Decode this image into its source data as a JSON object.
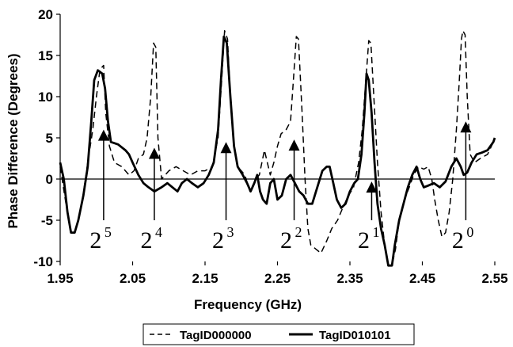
{
  "chart_data": {
    "type": "line",
    "xlabel": "Frequency (GHz)",
    "ylabel": "Phase Difference (Degrees)",
    "xlim": [
      1.95,
      2.55
    ],
    "ylim": [
      -10,
      20
    ],
    "xticks": [
      "1.95",
      "2.05",
      "2.15",
      "2.25",
      "2.35",
      "2.45",
      "2.55"
    ],
    "yticks": [
      "-10",
      "-5",
      "0",
      "5",
      "10",
      "15",
      "20"
    ],
    "grid": false,
    "legend_position": "bottom",
    "series": [
      {
        "name": "TagID000000",
        "style": "dashed",
        "points": [
          [
            1.95,
            1.5
          ],
          [
            1.958,
            -3
          ],
          [
            1.965,
            -6.5
          ],
          [
            1.972,
            -6
          ],
          [
            1.98,
            -3
          ],
          [
            1.988,
            2
          ],
          [
            1.995,
            6
          ],
          [
            2.0,
            10
          ],
          [
            2.005,
            13.3
          ],
          [
            2.01,
            13.8
          ],
          [
            2.013,
            8
          ],
          [
            2.018,
            4
          ],
          [
            2.025,
            2
          ],
          [
            2.035,
            1.5
          ],
          [
            2.045,
            0.5
          ],
          [
            2.052,
            1
          ],
          [
            2.058,
            2.5
          ],
          [
            2.065,
            3
          ],
          [
            2.07,
            5
          ],
          [
            2.075,
            10
          ],
          [
            2.079,
            16.5
          ],
          [
            2.082,
            16
          ],
          [
            2.085,
            5
          ],
          [
            2.09,
            0
          ],
          [
            2.1,
            1
          ],
          [
            2.11,
            1.5
          ],
          [
            2.12,
            1
          ],
          [
            2.13,
            0.5
          ],
          [
            2.14,
            1
          ],
          [
            2.15,
            1
          ],
          [
            2.16,
            1.5
          ],
          [
            2.168,
            5
          ],
          [
            2.173,
            12
          ],
          [
            2.177,
            18
          ],
          [
            2.181,
            17
          ],
          [
            2.185,
            10
          ],
          [
            2.19,
            4
          ],
          [
            2.195,
            1.5
          ],
          [
            2.205,
            0.5
          ],
          [
            2.212,
            -1.5
          ],
          [
            2.22,
            0
          ],
          [
            2.225,
            0.5
          ],
          [
            2.232,
            3.5
          ],
          [
            2.236,
            2
          ],
          [
            2.24,
            0.5
          ],
          [
            2.245,
            2
          ],
          [
            2.25,
            4
          ],
          [
            2.255,
            5.5
          ],
          [
            2.262,
            6
          ],
          [
            2.268,
            7
          ],
          [
            2.272,
            12
          ],
          [
            2.276,
            17.3
          ],
          [
            2.279,
            17
          ],
          [
            2.284,
            8
          ],
          [
            2.288,
            0
          ],
          [
            2.292,
            -6
          ],
          [
            2.296,
            -8
          ],
          [
            2.303,
            -8.5
          ],
          [
            2.31,
            -9
          ],
          [
            2.318,
            -7.5
          ],
          [
            2.325,
            -6
          ],
          [
            2.333,
            -5
          ],
          [
            2.34,
            -3.5
          ],
          [
            2.348,
            -2
          ],
          [
            2.355,
            -1
          ],
          [
            2.362,
            2
          ],
          [
            2.367,
            6
          ],
          [
            2.372,
            12
          ],
          [
            2.376,
            16.8
          ],
          [
            2.379,
            16.5
          ],
          [
            2.383,
            10
          ],
          [
            2.388,
            2
          ],
          [
            2.393,
            -4
          ],
          [
            2.398,
            -8
          ],
          [
            2.403,
            -10.5
          ],
          [
            2.408,
            -10.5
          ],
          [
            2.413,
            -8.5
          ],
          [
            2.418,
            -5
          ],
          [
            2.425,
            -2.5
          ],
          [
            2.432,
            -1
          ],
          [
            2.438,
            0.5
          ],
          [
            2.445,
            1.5
          ],
          [
            2.452,
            1.2
          ],
          [
            2.458,
            1.5
          ],
          [
            2.463,
            0
          ],
          [
            2.467,
            -2.5
          ],
          [
            2.472,
            -5
          ],
          [
            2.477,
            -7
          ],
          [
            2.482,
            -6.5
          ],
          [
            2.487,
            -4
          ],
          [
            2.492,
            0
          ],
          [
            2.497,
            6
          ],
          [
            2.501,
            12
          ],
          [
            2.504,
            17
          ],
          [
            2.506,
            18
          ],
          [
            2.509,
            17.5
          ],
          [
            2.512,
            10
          ],
          [
            2.516,
            3
          ],
          [
            2.522,
            2
          ],
          [
            2.53,
            2.5
          ],
          [
            2.54,
            3
          ],
          [
            2.548,
            4.5
          ],
          [
            2.55,
            4.8
          ]
        ]
      },
      {
        "name": "TagID010101",
        "style": "solid",
        "points": [
          [
            1.95,
            2
          ],
          [
            1.955,
            0
          ],
          [
            1.96,
            -4
          ],
          [
            1.965,
            -6.5
          ],
          [
            1.97,
            -6.5
          ],
          [
            1.975,
            -5
          ],
          [
            1.982,
            -2
          ],
          [
            1.988,
            1.5
          ],
          [
            1.993,
            7
          ],
          [
            1.997,
            12
          ],
          [
            2.002,
            13.2
          ],
          [
            2.008,
            12.8
          ],
          [
            2.012,
            11
          ],
          [
            2.016,
            7
          ],
          [
            2.02,
            4.5
          ],
          [
            2.03,
            4.2
          ],
          [
            2.04,
            3.5
          ],
          [
            2.045,
            3
          ],
          [
            2.05,
            2
          ],
          [
            2.058,
            0.5
          ],
          [
            2.065,
            -0.5
          ],
          [
            2.072,
            -1
          ],
          [
            2.08,
            -1.5
          ],
          [
            2.09,
            -1
          ],
          [
            2.098,
            -0.5
          ],
          [
            2.105,
            -1
          ],
          [
            2.112,
            -1.5
          ],
          [
            2.118,
            -0.5
          ],
          [
            2.125,
            0
          ],
          [
            2.132,
            -0.5
          ],
          [
            2.14,
            -1
          ],
          [
            2.148,
            -0.5
          ],
          [
            2.155,
            0.5
          ],
          [
            2.162,
            2
          ],
          [
            2.168,
            6
          ],
          [
            2.172,
            12
          ],
          [
            2.176,
            17.3
          ],
          [
            2.18,
            16.5
          ],
          [
            2.185,
            10
          ],
          [
            2.19,
            4
          ],
          [
            2.195,
            1.5
          ],
          [
            2.202,
            0.5
          ],
          [
            2.208,
            -0.5
          ],
          [
            2.213,
            -1.5
          ],
          [
            2.218,
            -0.5
          ],
          [
            2.222,
            0.5
          ],
          [
            2.226,
            -1.5
          ],
          [
            2.23,
            -2.5
          ],
          [
            2.235,
            -3
          ],
          [
            2.24,
            -0.5
          ],
          [
            2.245,
            0
          ],
          [
            2.25,
            -2.5
          ],
          [
            2.256,
            -2
          ],
          [
            2.262,
            0
          ],
          [
            2.268,
            0.5
          ],
          [
            2.274,
            -0.5
          ],
          [
            2.28,
            -1.5
          ],
          [
            2.286,
            -2
          ],
          [
            2.292,
            -3
          ],
          [
            2.298,
            -3
          ],
          [
            2.305,
            -1
          ],
          [
            2.312,
            1
          ],
          [
            2.318,
            1.5
          ],
          [
            2.322,
            1.5
          ],
          [
            2.327,
            -0.5
          ],
          [
            2.332,
            -2.5
          ],
          [
            2.338,
            -3.5
          ],
          [
            2.344,
            -3
          ],
          [
            2.35,
            -1.5
          ],
          [
            2.356,
            -0.5
          ],
          [
            2.361,
            0
          ],
          [
            2.366,
            3
          ],
          [
            2.37,
            8
          ],
          [
            2.373,
            12.8
          ],
          [
            2.376,
            12
          ],
          [
            2.38,
            8
          ],
          [
            2.384,
            2
          ],
          [
            2.388,
            -3
          ],
          [
            2.393,
            -6
          ],
          [
            2.398,
            -8
          ],
          [
            2.403,
            -10.5
          ],
          [
            2.408,
            -10.5
          ],
          [
            2.412,
            -8
          ],
          [
            2.418,
            -5
          ],
          [
            2.424,
            -3
          ],
          [
            2.43,
            -1
          ],
          [
            2.436,
            0.5
          ],
          [
            2.442,
            1.5
          ],
          [
            2.447,
            0
          ],
          [
            2.452,
            -1
          ],
          [
            2.458,
            -0.8
          ],
          [
            2.466,
            -0.5
          ],
          [
            2.474,
            -1
          ],
          [
            2.482,
            -0.3
          ],
          [
            2.49,
            1.5
          ],
          [
            2.497,
            2.5
          ],
          [
            2.503,
            1.5
          ],
          [
            2.507,
            0.5
          ],
          [
            2.512,
            0.8
          ],
          [
            2.518,
            2
          ],
          [
            2.525,
            3
          ],
          [
            2.532,
            3.2
          ],
          [
            2.54,
            3.5
          ],
          [
            2.548,
            4.5
          ],
          [
            2.55,
            5
          ]
        ]
      }
    ],
    "annotations": [
      {
        "x": 2.01,
        "arrow_tip_y": 6.0,
        "base": "2",
        "exponent": "5"
      },
      {
        "x": 2.08,
        "arrow_tip_y": 3.8,
        "base": "2",
        "exponent": "4"
      },
      {
        "x": 2.179,
        "arrow_tip_y": 4.5,
        "base": "2",
        "exponent": "3"
      },
      {
        "x": 2.273,
        "arrow_tip_y": 4.8,
        "base": "2",
        "exponent": "2"
      },
      {
        "x": 2.38,
        "arrow_tip_y": -0.3,
        "base": "2",
        "exponent": "1"
      },
      {
        "x": 2.51,
        "arrow_tip_y": 7.0,
        "base": "2",
        "exponent": "0"
      }
    ]
  }
}
